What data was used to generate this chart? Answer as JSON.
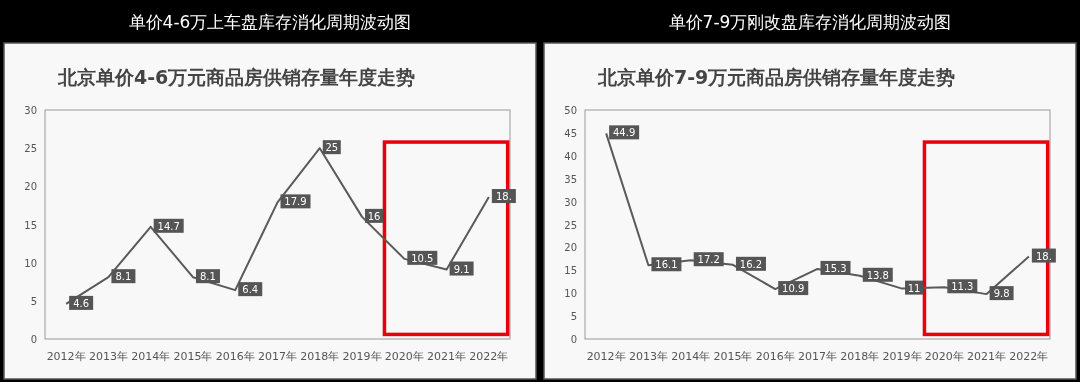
{
  "chart_data": [
    {
      "type": "line",
      "title": "单价4-6万上车盘库存消化周期波动图",
      "subtitle": "北京单价4-6万元商品房供销存量年度走势",
      "categories": [
        "2012年",
        "2013年",
        "2014年",
        "2015年",
        "2016年",
        "2017年",
        "2018年",
        "2019年",
        "2020年",
        "2021年",
        "2022年"
      ],
      "series": [
        {
          "color": "#5a5a5a",
          "values": [
            4.6,
            8.1,
            14.7,
            8.1,
            6.4,
            17.9,
            25,
            16,
            10.5,
            9.1,
            18.6
          ],
          "value_labels": [
            "4.6",
            "8.1",
            "14.7",
            "8.1",
            "6.4",
            "17.9",
            "25",
            "16",
            "10.5",
            "9.1",
            null
          ]
        }
      ],
      "annotations": [
        {
          "text": "18.",
          "x": "2022年",
          "y": 18.6
        }
      ],
      "ylim": [
        0,
        30
      ],
      "yticks": [
        0,
        5,
        10,
        15,
        20,
        25,
        30
      ],
      "marker": "none"
    },
    {
      "type": "line",
      "title": "单价7-9万刚改盘库存消化周期波动图",
      "subtitle": "北京单价7-9万元商品房供销存量年度走势",
      "categories": [
        "2012年",
        "2013年",
        "2014年",
        "2015年",
        "2016年",
        "2017年",
        "2018年",
        "2019年",
        "2020年",
        "2021年",
        "2022年"
      ],
      "series": [
        {
          "color": "#5a5a5a",
          "values": [
            44.9,
            16.1,
            17.2,
            16.2,
            10.9,
            15.3,
            13.8,
            11,
            11.3,
            9.8,
            18.0
          ],
          "value_labels": [
            "44.9",
            "16.1",
            "17.2",
            "16.2",
            "10.9",
            "15.3",
            "13.8",
            "11",
            "11.3",
            "9.8",
            null
          ]
        }
      ],
      "annotations": [
        {
          "text": "18.",
          "x": "2022年",
          "y": 18.0
        }
      ],
      "ylim": [
        0,
        50
      ],
      "yticks": [
        0,
        5,
        10,
        15,
        20,
        25,
        30,
        35,
        40,
        45,
        50
      ],
      "marker": "none"
    }
  ]
}
